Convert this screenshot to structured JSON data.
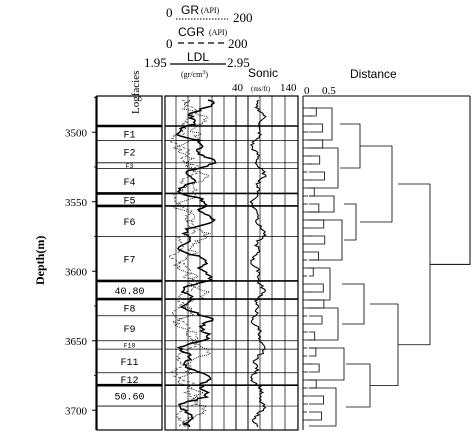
{
  "axis": {
    "ylabel": "Depth(m)",
    "ticks": [
      "3500",
      "3550",
      "3600",
      "3650",
      "3700"
    ]
  },
  "columns": {
    "logfacies_label": "Logfacies",
    "distance_label": "Distance",
    "distance_ticks": [
      "0",
      "0.5"
    ]
  },
  "legend": {
    "gr": {
      "label": "GR",
      "unit": "(API)",
      "min": "0",
      "max": "200"
    },
    "cgr": {
      "label": "CGR",
      "unit": "(API)",
      "min": "0",
      "max": "200"
    },
    "ldl": {
      "label": "LDL",
      "unit": "(gr/cm",
      "unit_exp": "3",
      "unit_close": ")",
      "min": "1.95",
      "max": "2.95"
    },
    "sonic": {
      "label": "Sonic",
      "unit": "(ms/ft)",
      "min": "40",
      "max": "140"
    }
  },
  "facies": [
    {
      "label": "F1",
      "top": 3495.5,
      "bottom": 3506,
      "small": false
    },
    {
      "label": "F2",
      "top": 3506,
      "bottom": 3522,
      "small": false
    },
    {
      "label": "F3",
      "top": 3522,
      "bottom": 3526,
      "small": true
    },
    {
      "label": "F4",
      "top": 3526,
      "bottom": 3544,
      "small": false
    },
    {
      "label": "F5",
      "top": 3544,
      "bottom": 3553,
      "small": false
    },
    {
      "label": "F6",
      "top": 3553,
      "bottom": 3575,
      "small": false
    },
    {
      "label": "F7",
      "top": 3575,
      "bottom": 3607,
      "small": false
    },
    {
      "label": "40.80",
      "top": 3607,
      "bottom": 3620,
      "small": false
    },
    {
      "label": "F8",
      "top": 3620,
      "bottom": 3632,
      "small": false
    },
    {
      "label": "F9",
      "top": 3632,
      "bottom": 3650,
      "small": false
    },
    {
      "label": "F10",
      "top": 3650,
      "bottom": 3656,
      "small": true
    },
    {
      "label": "F11",
      "top": 3656,
      "bottom": 3673,
      "small": false
    },
    {
      "label": "F12",
      "top": 3673,
      "bottom": 3682,
      "small": false
    },
    {
      "label": "50.60",
      "top": 3682,
      "bottom": 3697,
      "small": false
    }
  ],
  "thick_boundaries": [
    3495.5,
    3544,
    3553,
    3607,
    3620,
    3682
  ]
}
